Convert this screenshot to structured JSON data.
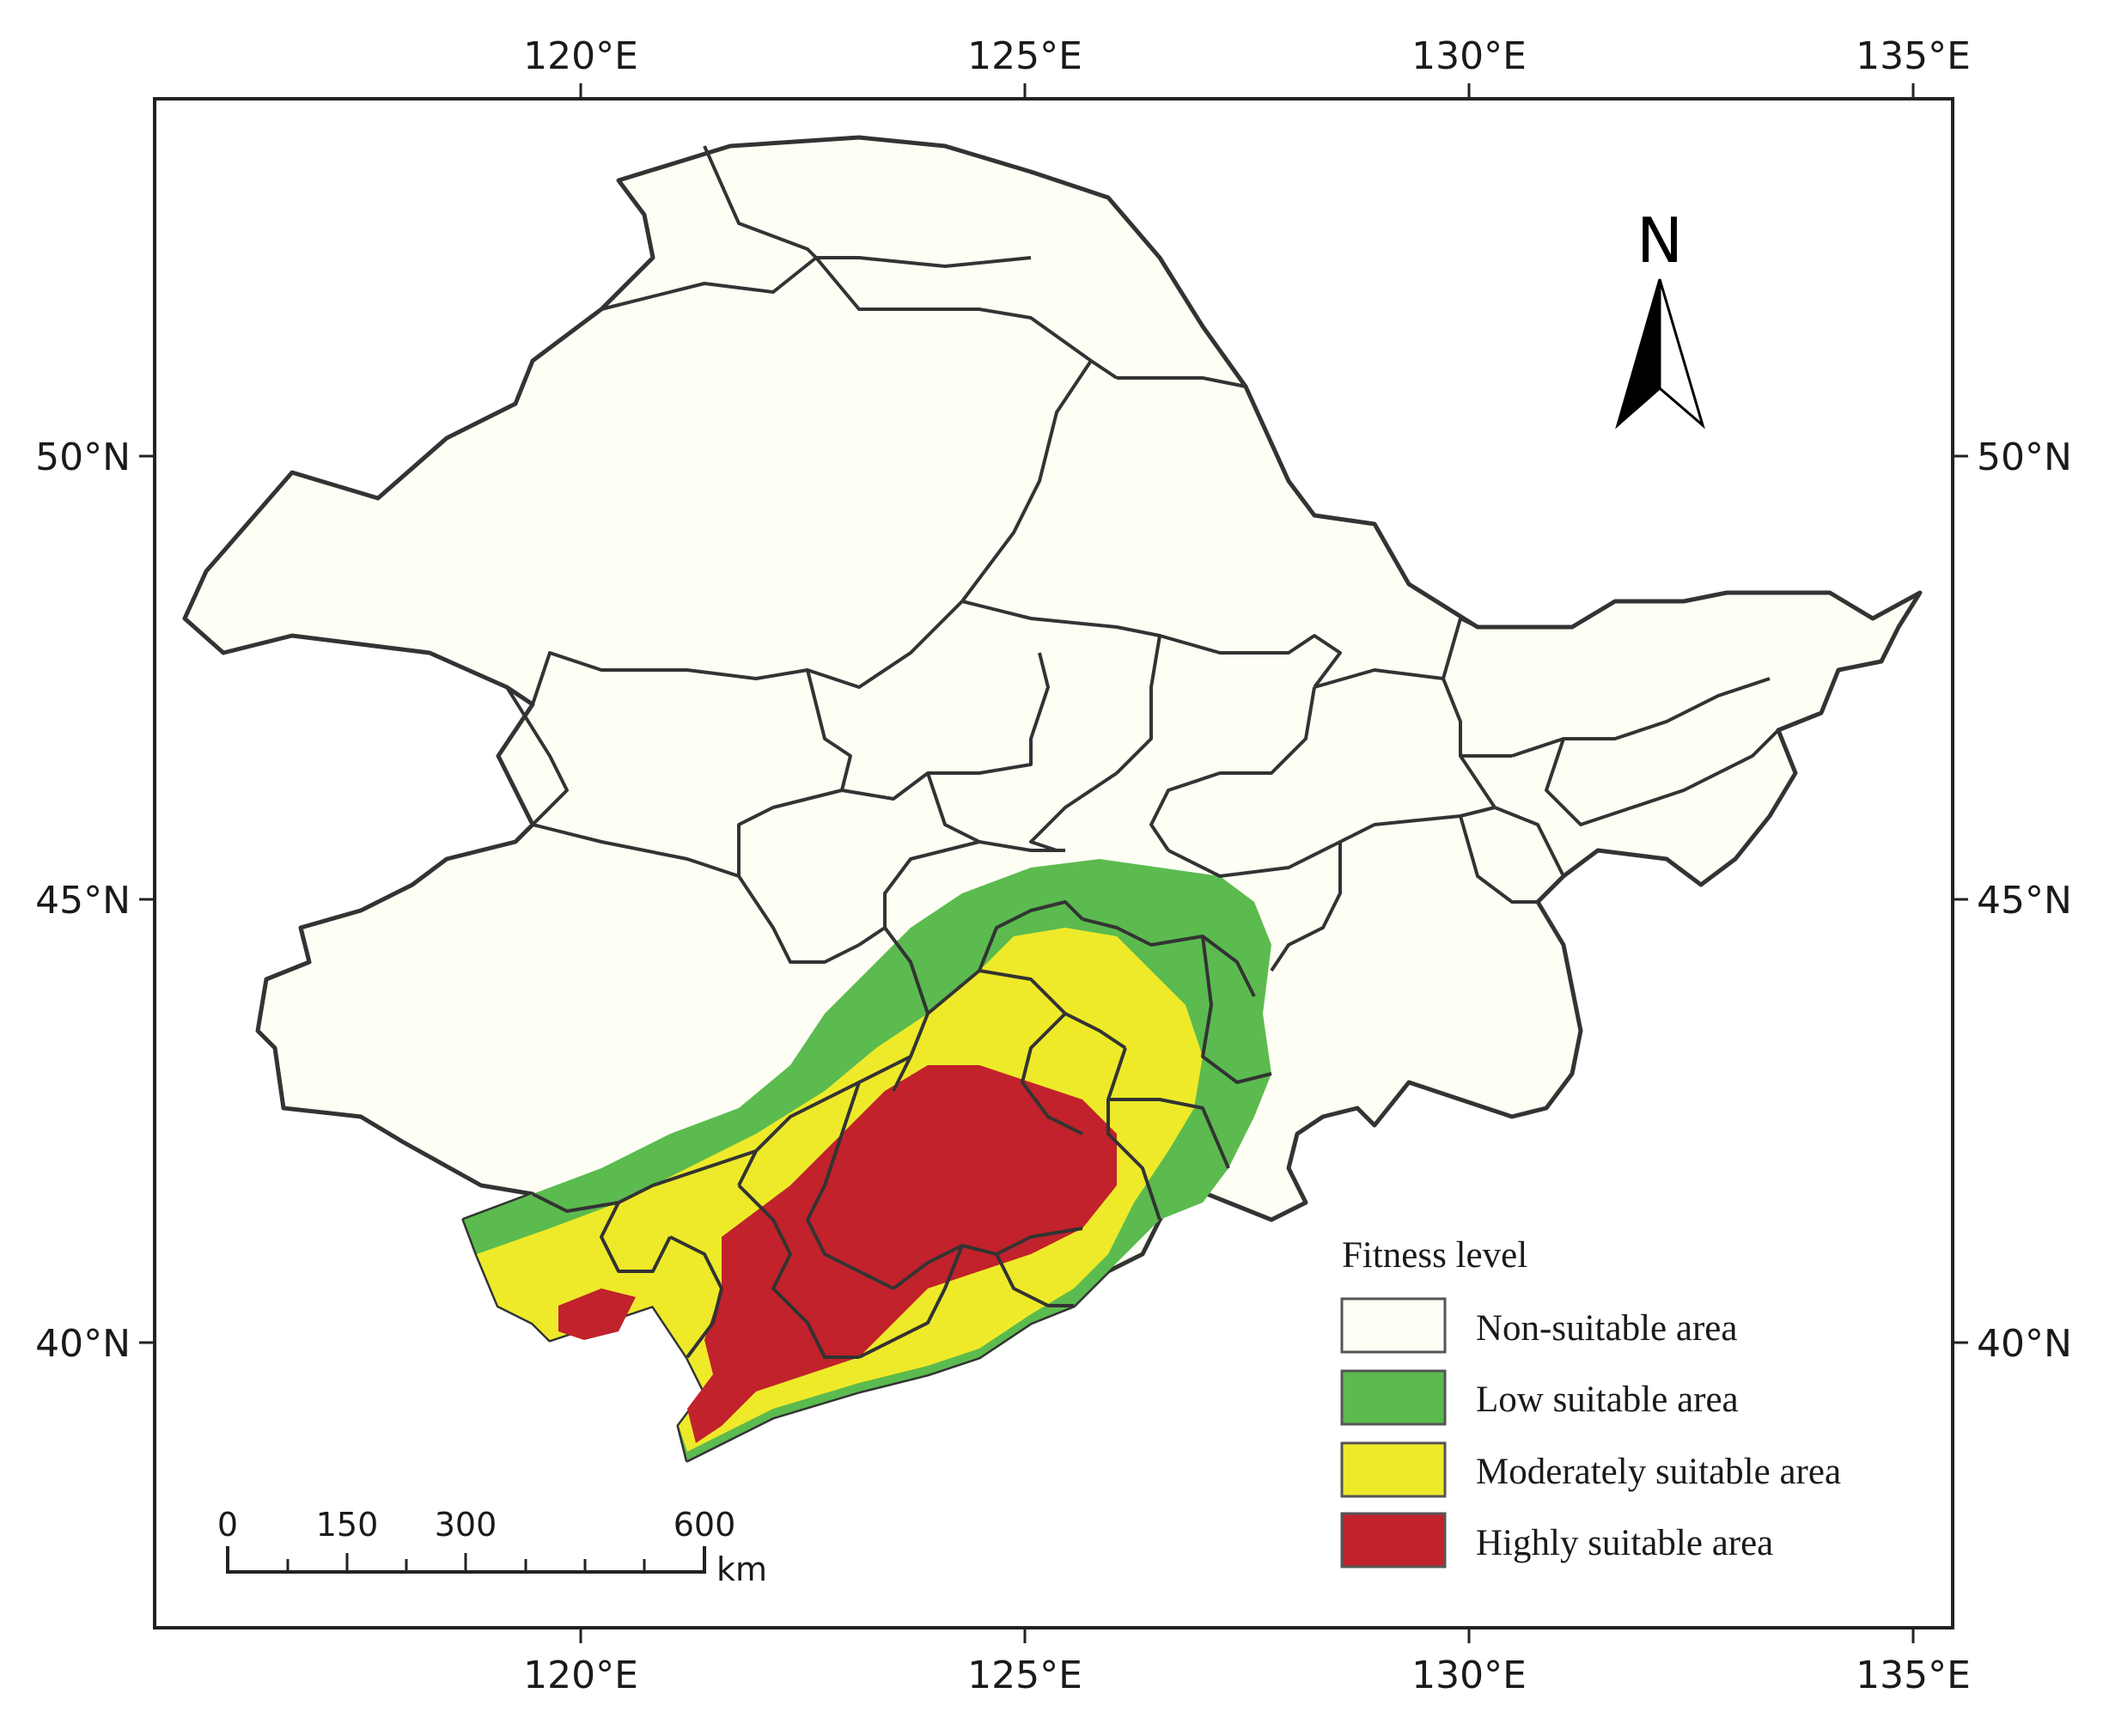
{
  "map": {
    "x_ticks": [
      {
        "label": "120°E",
        "value": 120
      },
      {
        "label": "125°E",
        "value": 125
      },
      {
        "label": "130°E",
        "value": 130
      },
      {
        "label": "135°E",
        "value": 135
      }
    ],
    "y_ticks": [
      {
        "label": "50°N",
        "value": 50
      },
      {
        "label": "45°N",
        "value": 45
      },
      {
        "label": "40°N",
        "value": 40
      }
    ],
    "north_arrow": {
      "label": "N"
    },
    "scale_bar": {
      "labels": [
        "0",
        "150",
        "300",
        "600"
      ],
      "unit": "km"
    },
    "legend": {
      "title": "Fitness level",
      "items": [
        {
          "label": "Non-suitable area",
          "color": "#fffef5"
        },
        {
          "label": "Low suitable area",
          "color": "#5bbb4f"
        },
        {
          "label": "Moderately suitable area",
          "color": "#eeea2a"
        },
        {
          "label": "Highly suitable area",
          "color": "#c1222b"
        }
      ]
    }
  }
}
